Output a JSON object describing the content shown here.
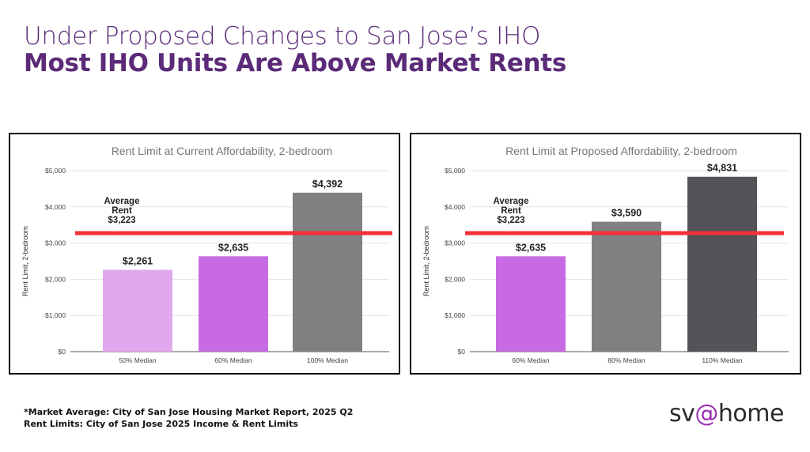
{
  "header": {
    "title_line1": "Under Proposed Changes to San Jose’s IHO",
    "title_line2": "Most IHO Units Are Above Market Rents"
  },
  "chart_data": [
    {
      "type": "bar",
      "title": "Rent Limit at Current Affordability, 2-bedroom",
      "xlabel": "",
      "ylabel": "Rent Limit, 2-bedroom",
      "ylim": [
        0,
        5000
      ],
      "yticks": [
        "$0",
        "$1,000",
        "$2,000",
        "$3,000",
        "$4,000",
        "$5,000"
      ],
      "grid": true,
      "categories": [
        "50% Median",
        "60% Median",
        "100% Median"
      ],
      "values": [
        2261,
        2635,
        4392
      ],
      "value_labels": [
        "$2,261",
        "$2,635",
        "$4,392"
      ],
      "colors": [
        "#e0a8ee",
        "#c86ae3",
        "#808080"
      ],
      "reference_line": {
        "value": 3223,
        "label_lines": [
          "Average",
          "Rent",
          "$3,223"
        ],
        "color": "#f5313a"
      }
    },
    {
      "type": "bar",
      "title": "Rent Limit at Proposed Affordability, 2-bedroom",
      "xlabel": "",
      "ylabel": "Rent Limit, 2-bedroom",
      "ylim": [
        0,
        5000
      ],
      "yticks": [
        "$0",
        "$1,000",
        "$2,000",
        "$3,000",
        "$4,000",
        "$5,000"
      ],
      "grid": true,
      "categories": [
        "60% Median",
        "80% Median",
        "110% Median"
      ],
      "values": [
        2635,
        3590,
        4831
      ],
      "value_labels": [
        "$2,635",
        "$3,590",
        "$4,831"
      ],
      "colors": [
        "#c86ae3",
        "#808080",
        "#545357"
      ],
      "reference_line": {
        "value": 3223,
        "label_lines": [
          "Average",
          "Rent",
          "$3,223"
        ],
        "color": "#f5313a"
      }
    }
  ],
  "footer": {
    "note1": "*Market Average: City of San Jose Housing Market Report, 2025 Q2",
    "note2": "Rent Limits: City of San Jose 2025 Income & Rent Limits",
    "logo_text": "sv@home"
  }
}
